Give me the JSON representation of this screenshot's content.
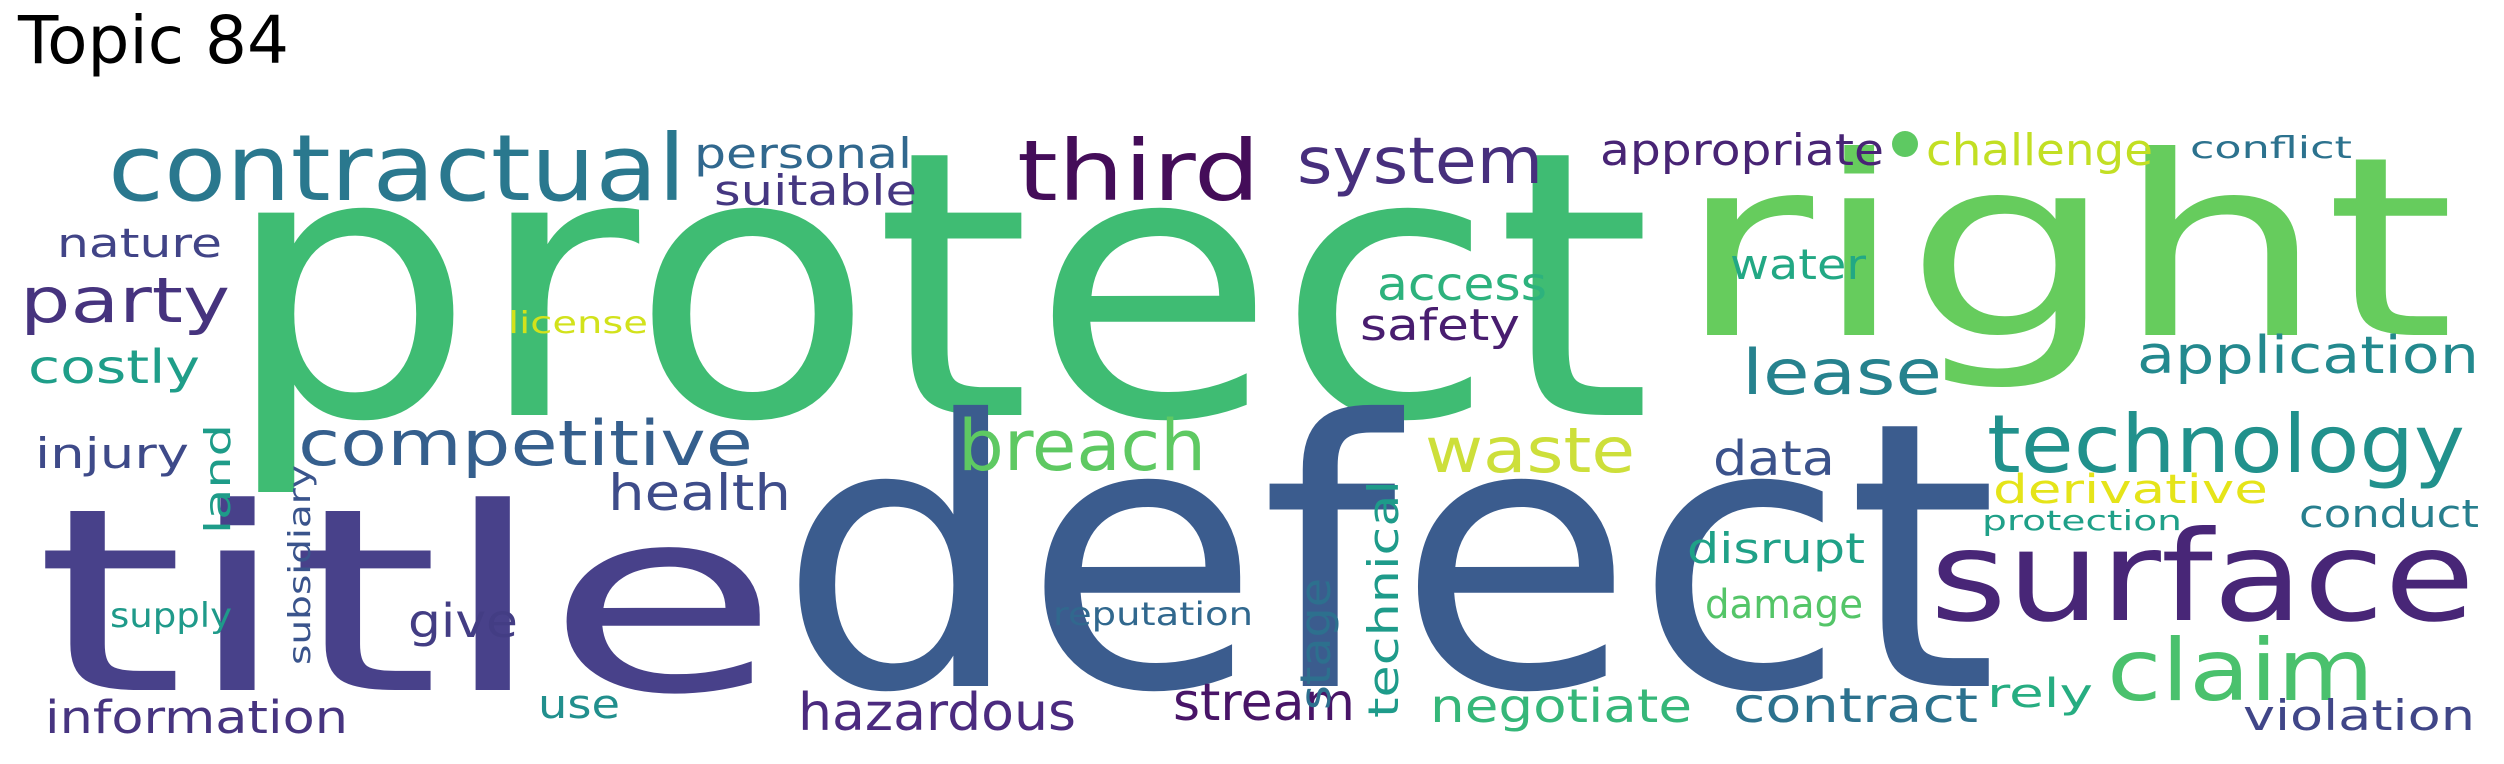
{
  "title": "Topic 84",
  "words": [
    {
      "text": "protect",
      "color": "#3fbc73"
    },
    {
      "text": "defect",
      "color": "#3b5c8e"
    },
    {
      "text": "right",
      "color": "#66cc5d"
    },
    {
      "text": "title",
      "color": "#48418a"
    },
    {
      "text": "surface",
      "color": "#482677"
    },
    {
      "text": "contractual",
      "color": "#2a788e"
    },
    {
      "text": "third",
      "color": "#440d59"
    },
    {
      "text": "system",
      "color": "#472f7d"
    },
    {
      "text": "technology",
      "color": "#21918c"
    },
    {
      "text": "claim",
      "color": "#4ac16d"
    },
    {
      "text": "competitive",
      "color": "#355f8d"
    },
    {
      "text": "breach",
      "color": "#5ec962"
    },
    {
      "text": "waste",
      "color": "#cddf3a"
    },
    {
      "text": "party",
      "color": "#46337e"
    },
    {
      "text": "lease",
      "color": "#26828e"
    },
    {
      "text": "application",
      "color": "#23898e"
    },
    {
      "text": "hazardous",
      "color": "#4b2a7f"
    },
    {
      "text": "stream",
      "color": "#481467"
    },
    {
      "text": "contract",
      "color": "#2c728e"
    },
    {
      "text": "negotiate",
      "color": "#35b779"
    },
    {
      "text": "information",
      "color": "#463480"
    },
    {
      "text": "health",
      "color": "#3e4c8a"
    },
    {
      "text": "access",
      "color": "#2db27d"
    },
    {
      "text": "safety",
      "color": "#481d6f"
    },
    {
      "text": "personal",
      "color": "#31688e"
    },
    {
      "text": "suitable",
      "color": "#453781"
    },
    {
      "text": "appropriate",
      "color": "#482475"
    },
    {
      "text": "challenge",
      "color": "#c2df23"
    },
    {
      "text": "data",
      "color": "#3b528b"
    },
    {
      "text": "disrupt",
      "color": "#1fa187"
    },
    {
      "text": "damage",
      "color": "#54c568"
    },
    {
      "text": "water",
      "color": "#22a884"
    },
    {
      "text": "derivative",
      "color": "#e5e419"
    },
    {
      "text": "conduct",
      "color": "#277f8e"
    },
    {
      "text": "violation",
      "color": "#404688"
    },
    {
      "text": "rely",
      "color": "#26ad81"
    },
    {
      "text": "costly",
      "color": "#1f9e89"
    },
    {
      "text": "nature",
      "color": "#414487"
    },
    {
      "text": "injury",
      "color": "#3e4a89"
    },
    {
      "text": "give",
      "color": "#433d84"
    },
    {
      "text": "use",
      "color": "#218f8d"
    },
    {
      "text": "technical",
      "color": "#1e9b8a"
    },
    {
      "text": "stage",
      "color": "#2d708e"
    },
    {
      "text": "reputation",
      "color": "#31688e"
    },
    {
      "text": "supply",
      "color": "#1f9a8a"
    },
    {
      "text": "subsidiary",
      "color": "#3a548c"
    },
    {
      "text": "land",
      "color": "#1e9c89"
    },
    {
      "text": "license",
      "color": "#d2e21b"
    },
    {
      "text": "protection",
      "color": "#1fa088"
    },
    {
      "text": "conflict",
      "color": "#2c728e"
    }
  ]
}
